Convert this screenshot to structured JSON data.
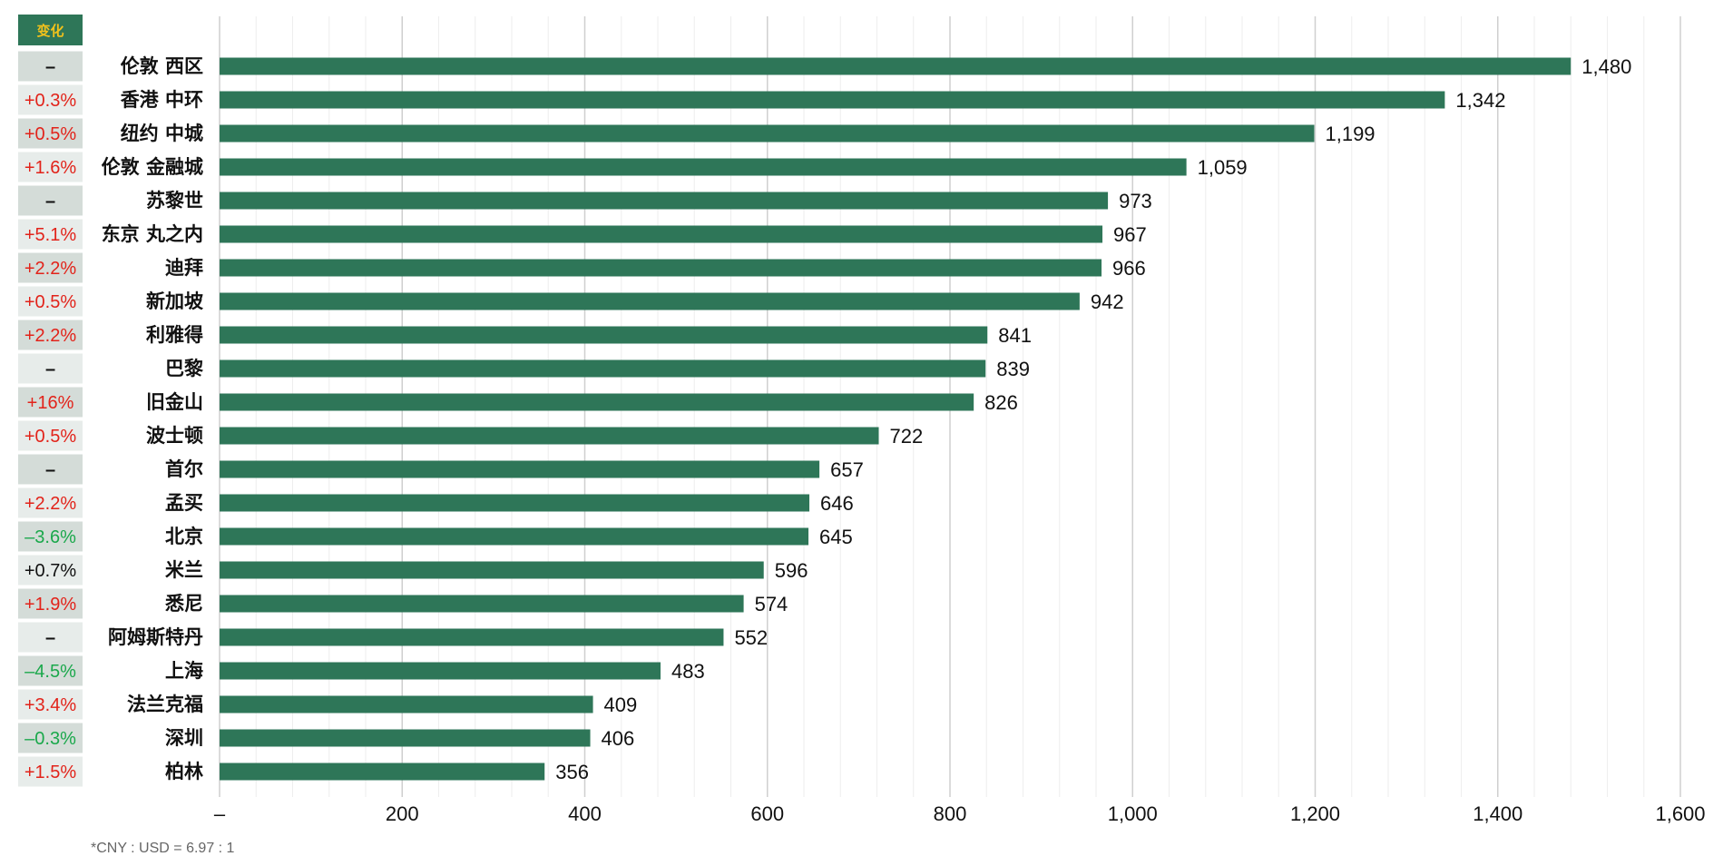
{
  "colors": {
    "bar": "#2e7658",
    "header_bg": "#2e7658",
    "header_text": "#f2c21b",
    "cell_dark": "#d4dcd8",
    "cell_light": "#e7ecea",
    "pos": "#e2231a",
    "neg": "#1aa84b",
    "neutral": "#111111",
    "grid_major": "#cfcfcf",
    "grid_minor": "#eeeeee"
  },
  "chart_data": {
    "type": "bar",
    "orientation": "horizontal",
    "change_header": "变化",
    "categories": [
      "伦敦 西区",
      "香港 中环",
      "纽约 中城",
      "伦敦 金融城",
      "苏黎世",
      "东京 丸之内",
      "迪拜",
      "新加坡",
      "利雅得",
      "巴黎",
      "旧金山",
      "波士顿",
      "首尔",
      "孟买",
      "北京",
      "米兰",
      "悉尼",
      "阿姆斯特丹",
      "上海",
      "法兰克福",
      "深圳",
      "柏林"
    ],
    "values": [
      1480,
      1342,
      1199,
      1059,
      973,
      967,
      966,
      942,
      841,
      839,
      826,
      722,
      657,
      646,
      645,
      596,
      574,
      552,
      483,
      409,
      406,
      356
    ],
    "value_labels": [
      "1,480",
      "1,342",
      "1,199",
      "1,059",
      "973",
      "967",
      "966",
      "942",
      "841",
      "839",
      "826",
      "722",
      "657",
      "646",
      "645",
      "596",
      "574",
      "552",
      "483",
      "409",
      "406",
      "356"
    ],
    "changes": [
      "–",
      "+0.3%",
      "+0.5%",
      "+1.6%",
      "–",
      "+5.1%",
      "+2.2%",
      "+0.5%",
      "+2.2%",
      "–",
      "+16%",
      "+0.5%",
      "–",
      "+2.2%",
      "–3.6%",
      "+0.7%",
      "+1.9%",
      "–",
      "–4.5%",
      "+3.4%",
      "–0.3%",
      "+1.5%"
    ],
    "change_types": [
      "none",
      "pos",
      "pos",
      "pos",
      "none",
      "pos",
      "pos",
      "pos",
      "pos",
      "none",
      "pos",
      "pos",
      "none",
      "pos",
      "neg",
      "neutral",
      "pos",
      "none",
      "neg",
      "pos",
      "neg",
      "pos"
    ],
    "change_shade": [
      "dark",
      "light",
      "dark",
      "light",
      "dark",
      "light",
      "dark",
      "light",
      "dark",
      "light",
      "dark",
      "light",
      "dark",
      "light",
      "dark",
      "light",
      "dark",
      "light",
      "dark",
      "light",
      "dark",
      "light"
    ],
    "xlim": [
      0,
      1600
    ],
    "xticks": [
      0,
      200,
      400,
      600,
      800,
      1000,
      1200,
      1400,
      1600
    ],
    "xtick_labels": [
      "–",
      "200",
      "400",
      "600",
      "800",
      "1,000",
      "1,200",
      "1,400",
      "1,600"
    ],
    "grid": true,
    "note": "*CNY : USD = 6.97 : 1"
  }
}
